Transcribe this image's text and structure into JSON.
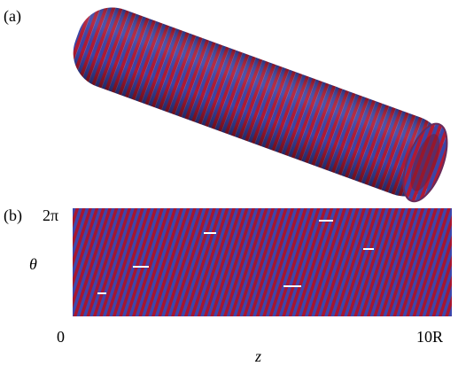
{
  "panel_a": {
    "label": "(a)"
  },
  "panel_b": {
    "label": "(b)",
    "y_axis": {
      "label": "θ",
      "top": "2π"
    },
    "x_axis": {
      "label": "z",
      "start": "0",
      "end": "10R"
    }
  }
}
